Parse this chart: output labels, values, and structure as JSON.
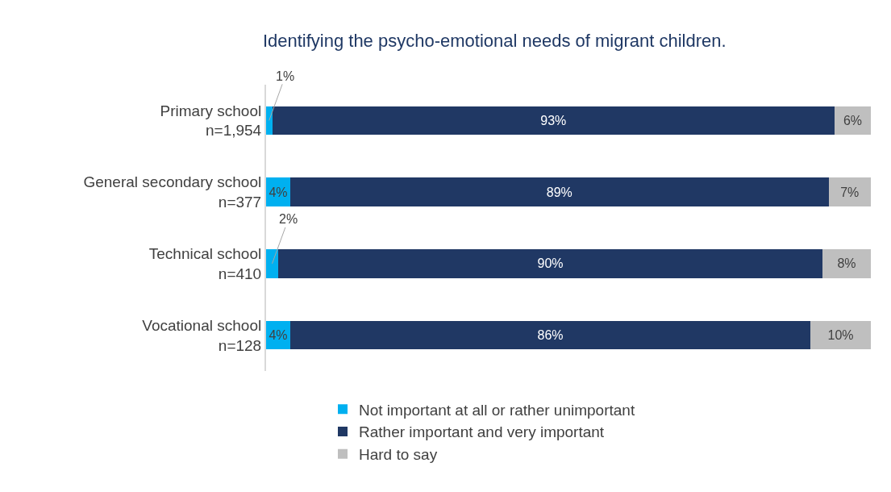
{
  "chart_data": {
    "type": "bar",
    "orientation": "horizontal",
    "stacked": true,
    "title": "Identifying the psycho-emotional needs of migrant children.",
    "categories": [
      "Primary school\nn=1,954",
      "General secondary school\nn=377",
      "Technical school\nn=410",
      "Vocational school\nn=128"
    ],
    "series": [
      {
        "name": "Not important at all or rather unimportant",
        "color": "#00b0f0",
        "values": [
          1,
          4,
          2,
          4
        ],
        "value_labels": [
          "1%",
          "4%",
          "2%",
          "4%"
        ]
      },
      {
        "name": "Rather important and very important",
        "color": "#203864",
        "values": [
          93,
          89,
          90,
          86
        ],
        "value_labels": [
          "93%",
          "89%",
          "90%",
          "86%"
        ]
      },
      {
        "name": "Hard to say",
        "color": "#bfbfbf",
        "values": [
          6,
          7,
          8,
          10
        ],
        "value_labels": [
          "6%",
          "7%",
          "8%",
          "10%"
        ]
      }
    ],
    "legend": "bottom"
  }
}
